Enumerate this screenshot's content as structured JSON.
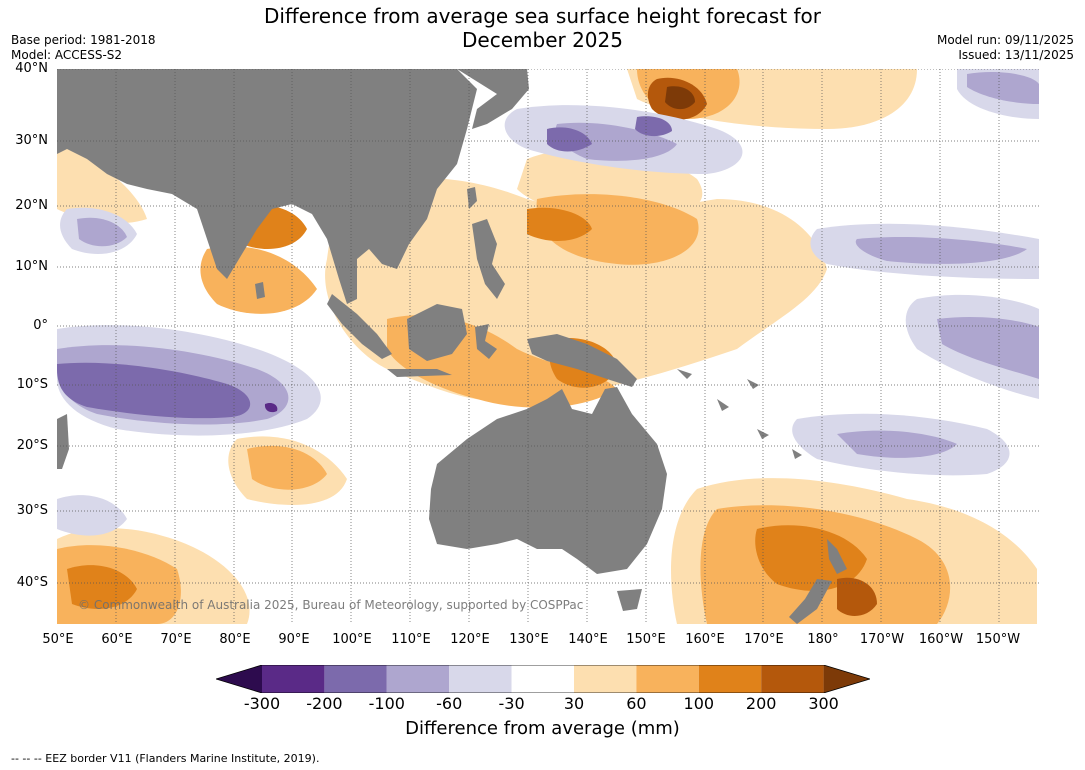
{
  "title_line1": "Difference from average sea surface height forecast for",
  "title_line2": "December 2025",
  "base_period": "Base period: 1981-2018",
  "model": "Model: ACCESS-S2",
  "model_run": "Model run: 09/11/2025",
  "issued": "Issued: 13/11/2025",
  "lat_labels": [
    "40°N",
    "30°N",
    "20°N",
    "10°N",
    "0°",
    "10°S",
    "20°S",
    "30°S",
    "40°S"
  ],
  "lon_labels": [
    "50°E",
    "60°E",
    "70°E",
    "80°E",
    "90°E",
    "100°E",
    "110°E",
    "120°E",
    "130°E",
    "140°E",
    "150°E",
    "160°E",
    "170°E",
    "180°",
    "170°W",
    "160°W",
    "150°W"
  ],
  "copyright": "© Commonwealth of Australia 2025, Bureau of Meteorology, supported by COSPPac",
  "colorbar": {
    "ticks": [
      "-300",
      "-200",
      "-100",
      "-60",
      "-30",
      "30",
      "60",
      "100",
      "200",
      "300"
    ],
    "colors": [
      "#2d0b4e",
      "#5a2a87",
      "#7c6aac",
      "#aea6cf",
      "#d8d8ea",
      "#ffffff",
      "#fddfb0",
      "#f8b25c",
      "#e0821a",
      "#b4580c",
      "#7d3a08"
    ],
    "label": "Difference from average (mm)"
  },
  "land_color": "#808080",
  "footnote": "--  --  -- EEZ border V11 (Flanders Marine Institute, 2019)."
}
